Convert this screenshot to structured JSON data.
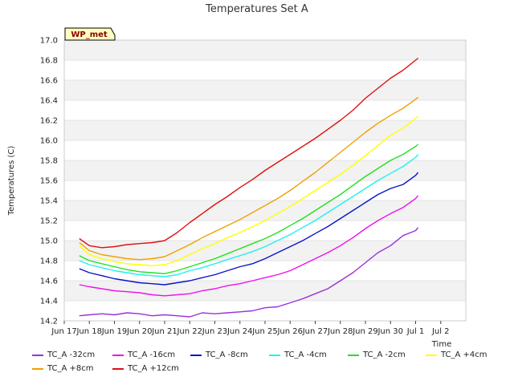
{
  "chart_data": {
    "type": "line",
    "title": "Temperatures Set A",
    "xlabel": "Time",
    "ylabel": "Temperatures (C)",
    "badge": "WP_met",
    "ylim": [
      14.2,
      17.0
    ],
    "yticks": [
      "14.2",
      "14.4",
      "14.6",
      "14.8",
      "15.0",
      "15.2",
      "15.4",
      "15.6",
      "15.8",
      "16.0",
      "16.2",
      "16.4",
      "16.6",
      "16.8",
      "17.0"
    ],
    "xlim": [
      16,
      32
    ],
    "xticks": [
      {
        "value": 16,
        "label": "Jun 17"
      },
      {
        "value": 17,
        "label": "Jun 18"
      },
      {
        "value": 18,
        "label": "Jun 19"
      },
      {
        "value": 19,
        "label": "Jun 20"
      },
      {
        "value": 20,
        "label": "Jun 21"
      },
      {
        "value": 21,
        "label": "Jun 22"
      },
      {
        "value": 22,
        "label": "Jun 23"
      },
      {
        "value": 23,
        "label": "Jun 24"
      },
      {
        "value": 24,
        "label": "Jun 25"
      },
      {
        "value": 25,
        "label": "Jun 26"
      },
      {
        "value": 26,
        "label": "Jun 27"
      },
      {
        "value": 27,
        "label": "Jun 28"
      },
      {
        "value": 28,
        "label": "Jun 29"
      },
      {
        "value": 29,
        "label": "Jun 30"
      },
      {
        "value": 30,
        "label": "Jul 1"
      },
      {
        "value": 31,
        "label": "Jul 2"
      }
    ],
    "grid": "horizontal bands",
    "legend_position": "bottom",
    "series": [
      {
        "name": "TC_A -32cm",
        "color": "#9b30d9",
        "x": [
          16.6,
          17,
          17.5,
          18,
          18.5,
          19,
          19.5,
          20,
          20.5,
          21,
          21.5,
          22,
          22.5,
          23,
          23.5,
          24,
          24.5,
          25,
          25.5,
          26,
          26.5,
          27,
          27.5,
          28,
          28.5,
          29,
          29.5,
          30,
          30.1
        ],
        "y": [
          14.25,
          14.26,
          14.27,
          14.26,
          14.28,
          14.27,
          14.25,
          14.26,
          14.25,
          14.24,
          14.28,
          14.27,
          14.28,
          14.29,
          14.3,
          14.33,
          14.34,
          14.38,
          14.42,
          14.47,
          14.52,
          14.6,
          14.68,
          14.78,
          14.88,
          14.95,
          15.05,
          15.1,
          15.13
        ]
      },
      {
        "name": "TC_A -16cm",
        "color": "#ee10ee",
        "x": [
          16.6,
          17,
          17.5,
          18,
          18.5,
          19,
          19.5,
          20,
          20.5,
          21,
          21.5,
          22,
          22.5,
          23,
          23.5,
          24,
          24.5,
          25,
          25.5,
          26,
          26.5,
          27,
          27.5,
          28,
          28.5,
          29,
          29.5,
          30,
          30.1
        ],
        "y": [
          14.56,
          14.54,
          14.52,
          14.5,
          14.49,
          14.48,
          14.46,
          14.45,
          14.46,
          14.47,
          14.5,
          14.52,
          14.55,
          14.57,
          14.6,
          14.63,
          14.66,
          14.7,
          14.76,
          14.82,
          14.88,
          14.95,
          15.03,
          15.12,
          15.2,
          15.27,
          15.33,
          15.42,
          15.45
        ]
      },
      {
        "name": "TC_A -8cm",
        "color": "#0a14c8",
        "x": [
          16.6,
          17,
          17.5,
          18,
          18.5,
          19,
          19.5,
          20,
          20.5,
          21,
          21.5,
          22,
          22.5,
          23,
          23.5,
          24,
          24.5,
          25,
          25.5,
          26,
          26.5,
          27,
          27.5,
          28,
          28.5,
          29,
          29.5,
          30,
          30.1
        ],
        "y": [
          14.72,
          14.68,
          14.65,
          14.62,
          14.6,
          14.58,
          14.57,
          14.56,
          14.58,
          14.6,
          14.63,
          14.66,
          14.7,
          14.74,
          14.77,
          14.82,
          14.88,
          14.94,
          15.0,
          15.07,
          15.14,
          15.22,
          15.3,
          15.38,
          15.46,
          15.52,
          15.56,
          15.65,
          15.68
        ]
      },
      {
        "name": "TC_A -4cm",
        "color": "#22f0f0",
        "x": [
          16.6,
          17,
          17.5,
          18,
          18.5,
          19,
          19.5,
          20,
          20.5,
          21,
          21.5,
          22,
          22.5,
          23,
          23.5,
          24,
          24.5,
          25,
          25.5,
          26,
          26.5,
          27,
          27.5,
          28,
          28.5,
          29,
          29.5,
          30,
          30.1
        ],
        "y": [
          14.8,
          14.76,
          14.73,
          14.7,
          14.68,
          14.66,
          14.65,
          14.64,
          14.66,
          14.7,
          14.73,
          14.77,
          14.81,
          14.85,
          14.89,
          14.94,
          15.0,
          15.06,
          15.13,
          15.2,
          15.28,
          15.36,
          15.44,
          15.52,
          15.6,
          15.67,
          15.74,
          15.83,
          15.86
        ]
      },
      {
        "name": "TC_A -2cm",
        "color": "#22e022",
        "x": [
          16.6,
          17,
          17.5,
          18,
          18.5,
          19,
          19.5,
          20,
          20.5,
          21,
          21.5,
          22,
          22.5,
          23,
          23.5,
          24,
          24.5,
          25,
          25.5,
          26,
          26.5,
          27,
          27.5,
          28,
          28.5,
          29,
          29.5,
          30,
          30.1
        ],
        "y": [
          14.85,
          14.8,
          14.77,
          14.74,
          14.71,
          14.69,
          14.68,
          14.67,
          14.7,
          14.74,
          14.78,
          14.82,
          14.87,
          14.92,
          14.97,
          15.02,
          15.08,
          15.15,
          15.22,
          15.3,
          15.38,
          15.46,
          15.55,
          15.64,
          15.72,
          15.8,
          15.86,
          15.94,
          15.96
        ]
      },
      {
        "name": "TC_A +4cm",
        "color": "#ffff00",
        "x": [
          16.6,
          17,
          17.5,
          18,
          18.5,
          19,
          19.5,
          20,
          20.5,
          21,
          21.5,
          22,
          22.5,
          23,
          23.5,
          24,
          24.5,
          25,
          25.5,
          26,
          26.5,
          27,
          27.5,
          28,
          28.5,
          29,
          29.5,
          30,
          30.1
        ],
        "y": [
          14.95,
          14.86,
          14.82,
          14.79,
          14.77,
          14.76,
          14.75,
          14.76,
          14.8,
          14.86,
          14.92,
          14.97,
          15.03,
          15.08,
          15.14,
          15.2,
          15.27,
          15.34,
          15.42,
          15.5,
          15.58,
          15.66,
          15.75,
          15.85,
          15.95,
          16.05,
          16.12,
          16.22,
          16.24
        ]
      },
      {
        "name": "TC_A +8cm",
        "color": "#f0a000",
        "x": [
          16.6,
          17,
          17.5,
          18,
          18.5,
          19,
          19.5,
          20,
          20.5,
          21,
          21.5,
          22,
          22.5,
          23,
          23.5,
          24,
          24.5,
          25,
          25.5,
          26,
          26.5,
          27,
          27.5,
          28,
          28.5,
          29,
          29.5,
          30,
          30.1
        ],
        "y": [
          14.98,
          14.9,
          14.86,
          14.84,
          14.82,
          14.81,
          14.82,
          14.84,
          14.9,
          14.96,
          15.03,
          15.09,
          15.15,
          15.21,
          15.28,
          15.35,
          15.42,
          15.5,
          15.59,
          15.68,
          15.78,
          15.88,
          15.98,
          16.08,
          16.17,
          16.25,
          16.32,
          16.41,
          16.43
        ]
      },
      {
        "name": "TC_A +12cm",
        "color": "#e01010",
        "x": [
          16.6,
          17,
          17.5,
          18,
          18.5,
          19,
          19.5,
          20,
          20.5,
          21,
          21.5,
          22,
          22.5,
          23,
          23.5,
          24,
          24.5,
          25,
          25.5,
          26,
          26.5,
          27,
          27.5,
          28,
          28.5,
          29,
          29.5,
          30,
          30.1
        ],
        "y": [
          15.02,
          14.95,
          14.93,
          14.94,
          14.96,
          14.97,
          14.98,
          15.0,
          15.08,
          15.18,
          15.27,
          15.36,
          15.44,
          15.53,
          15.61,
          15.7,
          15.78,
          15.86,
          15.94,
          16.02,
          16.11,
          16.2,
          16.3,
          16.42,
          16.52,
          16.62,
          16.7,
          16.8,
          16.82
        ]
      }
    ]
  }
}
